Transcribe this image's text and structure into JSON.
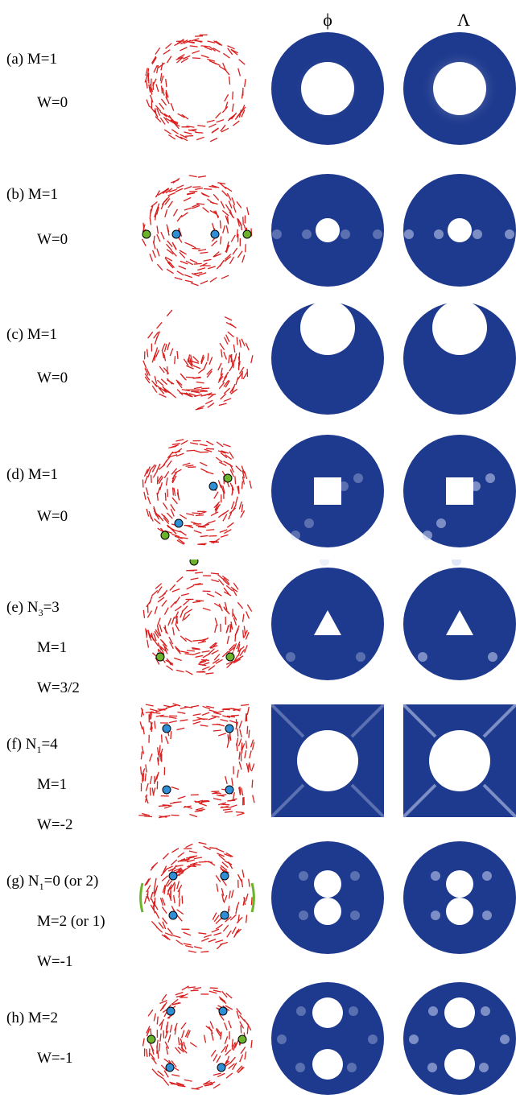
{
  "headers": {
    "phi": "ϕ",
    "lambda": "Λ"
  },
  "colors": {
    "field": "#1e3a8e",
    "director": "#d91e1e",
    "defect_plus": "#6bb32a",
    "defect_minus": "#2f8fd6"
  },
  "rows": [
    {
      "id": "a",
      "tag": "(a)",
      "lines": [
        {
          "text": "M=1"
        },
        {
          "text": "W=0"
        }
      ],
      "shape": "circle-center-large",
      "defects": []
    },
    {
      "id": "b",
      "tag": "(b)",
      "lines": [
        {
          "text": "M=1"
        },
        {
          "text": "W=0"
        }
      ],
      "shape": "circle-center-small",
      "defects": [
        "plus",
        "minus",
        "minus",
        "plus"
      ]
    },
    {
      "id": "c",
      "tag": "(c)",
      "lines": [
        {
          "text": "M=1"
        },
        {
          "text": "W=0"
        }
      ],
      "shape": "circle-top",
      "defects": []
    },
    {
      "id": "d",
      "tag": "(d)",
      "lines": [
        {
          "text": "M=1"
        },
        {
          "text": "W=0"
        }
      ],
      "shape": "square",
      "defects": [
        "plus",
        "minus",
        "minus",
        "plus"
      ]
    },
    {
      "id": "e",
      "tag": "(e)",
      "lines": [
        {
          "pre": "N",
          "sub": "3",
          "post": "=3"
        },
        {
          "text": "M=1"
        },
        {
          "text": "W=3/2"
        }
      ],
      "shape": "triangle",
      "defects": [
        "plus",
        "plus",
        "plus"
      ]
    },
    {
      "id": "f",
      "tag": "(f)",
      "lines": [
        {
          "pre": "N",
          "sub": "1",
          "post": "=4"
        },
        {
          "text": "M=1"
        },
        {
          "text": "W=-2"
        }
      ],
      "shape": "square-domain",
      "defects": [
        "minus",
        "minus",
        "minus",
        "minus"
      ]
    },
    {
      "id": "g",
      "tag": "(g)",
      "lines": [
        {
          "pre": "N",
          "sub": "1",
          "post": "=0 (or 2)"
        },
        {
          "text": "M=2 (or 1)"
        },
        {
          "text": "W=-1"
        }
      ],
      "shape": "two-circles-touching",
      "defects": [
        "minus",
        "minus",
        "minus",
        "minus"
      ]
    },
    {
      "id": "h",
      "tag": "(h)",
      "lines": [
        {
          "text": "M=2"
        },
        {
          "text": "W=-1"
        }
      ],
      "shape": "two-circles-apart",
      "defects": [
        "plus",
        "minus",
        "minus",
        "minus",
        "minus",
        "plus"
      ]
    }
  ]
}
